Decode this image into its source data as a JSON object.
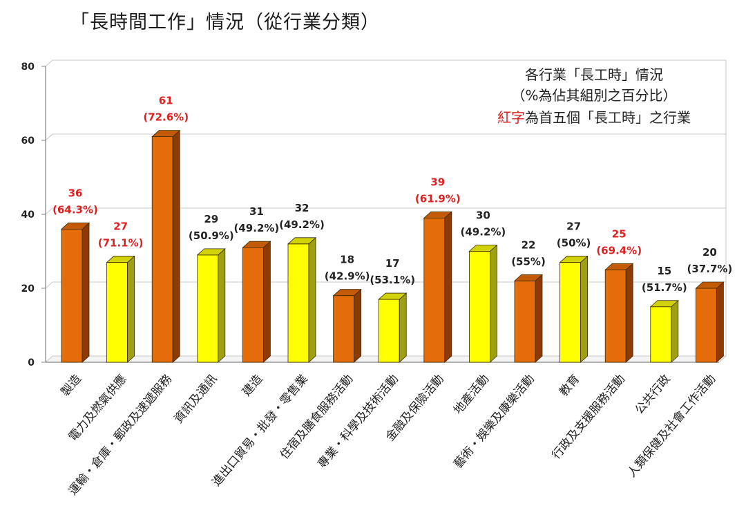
{
  "title": "「長時間工作」情況（從行業分類）",
  "note": {
    "line1": "各行業「長工時」情況",
    "line2": "（%為佔其組別之百分比）",
    "line3_red": "紅字",
    "line3_rest": "為首五個「長工時」之行業"
  },
  "chart_data": {
    "type": "bar",
    "title": "「長時間工作」情況（從行業分類）",
    "ylim": [
      0,
      80
    ],
    "yticks": [
      0,
      20,
      40,
      60,
      80
    ],
    "grid": true,
    "legend_position": "top-right",
    "categories": [
      "製造",
      "電力及燃氣供應",
      "運輸、倉庫、郵政及速遞服務",
      "資訊及通訊",
      "建造",
      "進出口貿易、批發、零售業",
      "住宿及膳食服務活動",
      "專業、科學及技術活動",
      "金融及保險活動",
      "地產活動",
      "藝術、娛樂及康樂活動",
      "教育",
      "行政及支援服務活動",
      "公共行政",
      "人類保健及社會工作活動"
    ],
    "category_labels": [
      "製造",
      "電力及燃氣供應",
      "運輸・倉庫・郵政及速遞服務",
      "資訊及通訊",
      "建造",
      "進出口貿易・批發・零售業",
      "住宿及膳食服務活動",
      "專業・科學及技術活動",
      "金融及保險活動",
      "地產活動",
      "藝術・娛樂及康樂活動",
      "教育",
      "行政及支援服務活動",
      "公共行政",
      "人類保健及社會工作活動"
    ],
    "values": [
      36,
      27,
      61,
      29,
      31,
      32,
      18,
      17,
      39,
      30,
      22,
      27,
      25,
      15,
      20
    ],
    "percent_labels": [
      "(64.3%)",
      "(71.1%)",
      "(72.6%)",
      "(50.9%)",
      "(49.2%)",
      "(49.2%)",
      "(42.9%)",
      "(53.1%)",
      "(61.9%)",
      "(49.2%)",
      "(55%)",
      "(50%)",
      "(69.4%)",
      "(51.7%)",
      "(37.7%)"
    ],
    "bar_colors": [
      "orange",
      "yellow",
      "orange",
      "yellow",
      "orange",
      "yellow",
      "orange",
      "yellow",
      "orange",
      "yellow",
      "orange",
      "yellow",
      "orange",
      "yellow",
      "orange"
    ],
    "top_five": [
      true,
      true,
      true,
      false,
      false,
      false,
      false,
      false,
      true,
      false,
      false,
      false,
      true,
      false,
      false
    ]
  },
  "colors": {
    "orange": "#e46c0a",
    "orange_side": "#8e3a04",
    "orange_top": "#c35a08",
    "yellow": "#ffff00",
    "yellow_side": "#9f9f12",
    "yellow_top": "#d2d20a",
    "highlight_label": "#e02020",
    "normal_label": "#222222",
    "grid": "#c8c8c8",
    "axis": "#808080"
  }
}
